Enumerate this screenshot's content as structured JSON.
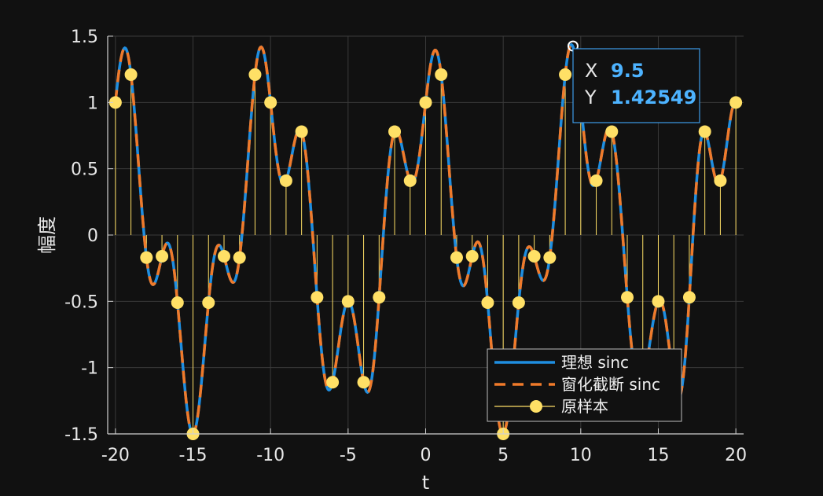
{
  "chart_data": {
    "type": "line",
    "xlabel": "t",
    "ylabel": "幅度",
    "xlim": [
      -20.5,
      20.5
    ],
    "ylim": [
      -1.5,
      1.5
    ],
    "xticks": [
      "-20",
      "-15",
      "-10",
      "-5",
      "0",
      "5",
      "10",
      "15",
      "20"
    ],
    "yticks": [
      "1.5",
      "1",
      "0.5",
      "0",
      "-0.5",
      "-1",
      "-1.5"
    ],
    "grid": true,
    "legend_position": "bottom-center",
    "colors": {
      "background": "#111111",
      "grid": "#3a3a3a",
      "axis": "#d0d0d0",
      "ideal": "#1f8ee0",
      "windowed": "#f07a2a",
      "samples": "#ffe066"
    },
    "series": [
      {
        "name": "理想 sinc",
        "style": "solid"
      },
      {
        "name": "窗化截断 sinc",
        "style": "dashed"
      },
      {
        "name": "原样本",
        "style": "stem"
      }
    ],
    "samples": {
      "x": [
        -20,
        -19,
        -18,
        -17,
        -16,
        -15,
        -14,
        -13,
        -12,
        -11,
        -10,
        -9,
        -8,
        -7,
        -6,
        -5,
        -4,
        -3,
        -2,
        -1,
        0,
        1,
        2,
        3,
        4,
        5,
        6,
        7,
        8,
        9,
        10,
        11,
        12,
        13,
        14,
        15,
        16,
        17,
        18,
        19,
        20
      ],
      "y": [
        1,
        1.21,
        -0.17,
        -0.16,
        -0.51,
        -1.5,
        -0.51,
        -0.16,
        -0.17,
        1.21,
        1,
        0.41,
        0.78,
        -0.47,
        -1.11,
        -0.5,
        -1.11,
        -0.47,
        0.78,
        0.41,
        1,
        1.21,
        -0.17,
        -0.16,
        -0.51,
        -1.5,
        -0.51,
        -0.16,
        -0.17,
        1.21,
        1,
        0.41,
        0.78,
        -0.47,
        -1.11,
        -0.5,
        -1.11,
        -0.47,
        0.78,
        0.41,
        1
      ]
    },
    "datatip": {
      "x_label": "X",
      "x_value": "9.5",
      "y_label": "Y",
      "y_value": "1.42549",
      "point": [
        9.5,
        1.42549
      ]
    }
  }
}
